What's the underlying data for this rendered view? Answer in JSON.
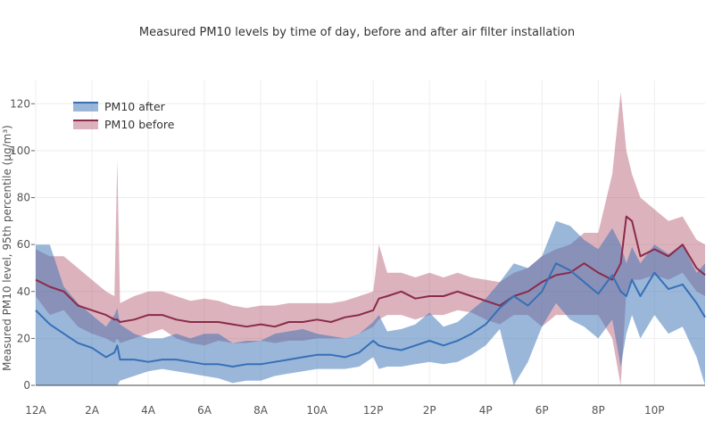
{
  "chart_data": {
    "type": "area",
    "title": "Measured PM10 levels by time of day, before and after air filter installation",
    "xlabel": "",
    "ylabel": "Measured PM10 level, 95th percentile (µg/m³)",
    "xlim_hours": [
      0,
      23.8
    ],
    "ylim": [
      0,
      130
    ],
    "grid": true,
    "legend_position": "top-left",
    "x_tick_hours": [
      0,
      2,
      4,
      6,
      8,
      10,
      12,
      14,
      16,
      18,
      20,
      22
    ],
    "x_tick_labels": [
      "12A",
      "2A",
      "4A",
      "6A",
      "8A",
      "10A",
      "12P",
      "2P",
      "4P",
      "6P",
      "8P",
      "10P"
    ],
    "y_ticks": [
      0,
      20,
      40,
      60,
      80,
      100,
      120
    ],
    "y_tick_labels": [
      "0",
      "20",
      "40",
      "60",
      "80",
      "100",
      "120"
    ],
    "x_hours": [
      0,
      0.5,
      1,
      1.5,
      2,
      2.5,
      2.8,
      2.9,
      3,
      3.5,
      4,
      4.5,
      5,
      5.5,
      6,
      6.5,
      7,
      7.5,
      8,
      8.5,
      9,
      9.5,
      10,
      10.5,
      11,
      11.5,
      12,
      12.2,
      12.5,
      13,
      13.5,
      14,
      14.5,
      15,
      15.5,
      16,
      16.5,
      17,
      17.5,
      18,
      18.5,
      19,
      19.5,
      20,
      20.5,
      20.8,
      21,
      21.2,
      21.5,
      22,
      22.5,
      23,
      23.5,
      23.8
    ],
    "series": [
      {
        "name": "PM10 after",
        "color": "#3670b5",
        "fill": "rgba(54,112,181,0.5)",
        "mean": [
          32,
          26,
          22,
          18,
          16,
          12,
          14,
          17,
          11,
          11,
          10,
          11,
          11,
          10,
          9,
          9,
          8,
          9,
          9,
          10,
          11,
          12,
          13,
          13,
          12,
          14,
          19,
          17,
          16,
          15,
          17,
          19,
          17,
          19,
          22,
          26,
          33,
          38,
          34,
          40,
          52,
          49,
          44,
          39,
          47,
          40,
          38,
          45,
          38,
          48,
          41,
          43,
          35,
          29
        ],
        "lower": [
          0,
          0,
          0,
          0,
          0,
          0,
          0,
          0,
          2,
          4,
          6,
          7,
          6,
          5,
          4,
          3,
          1,
          2,
          2,
          4,
          5,
          6,
          7,
          7,
          7,
          8,
          12,
          7,
          8,
          8,
          9,
          10,
          9,
          10,
          13,
          17,
          24,
          0,
          10,
          25,
          35,
          28,
          25,
          20,
          28,
          8,
          22,
          30,
          20,
          30,
          22,
          25,
          12,
          0
        ],
        "upper": [
          60,
          60,
          42,
          35,
          30,
          25,
          30,
          33,
          26,
          22,
          20,
          20,
          22,
          20,
          22,
          22,
          18,
          19,
          19,
          22,
          23,
          24,
          22,
          21,
          20,
          22,
          27,
          30,
          23,
          24,
          26,
          31,
          25,
          27,
          32,
          37,
          44,
          52,
          50,
          55,
          70,
          68,
          62,
          58,
          67,
          60,
          52,
          59,
          52,
          60,
          56,
          60,
          48,
          52
        ]
      },
      {
        "name": "PM10 before",
        "color": "#8b2a4a",
        "fill": "rgba(168,64,90,0.4)",
        "mean": [
          45,
          42,
          40,
          34,
          32,
          30,
          28,
          28,
          27,
          28,
          30,
          30,
          28,
          27,
          27,
          27,
          26,
          25,
          26,
          25,
          27,
          27,
          28,
          27,
          29,
          30,
          32,
          37,
          38,
          40,
          37,
          38,
          38,
          40,
          38,
          36,
          34,
          38,
          40,
          44,
          47,
          48,
          52,
          48,
          45,
          52,
          72,
          70,
          55,
          58,
          55,
          60,
          50,
          47
        ],
        "lower": [
          38,
          30,
          32,
          25,
          22,
          20,
          18,
          20,
          18,
          20,
          22,
          24,
          20,
          18,
          17,
          19,
          18,
          18,
          19,
          18,
          19,
          19,
          20,
          20,
          20,
          22,
          25,
          28,
          30,
          30,
          28,
          30,
          30,
          32,
          31,
          28,
          26,
          30,
          30,
          25,
          30,
          30,
          30,
          30,
          20,
          0,
          40,
          45,
          45,
          47,
          45,
          48,
          40,
          38
        ],
        "upper": [
          58,
          55,
          55,
          50,
          45,
          40,
          38,
          96,
          35,
          38,
          40,
          40,
          38,
          36,
          37,
          36,
          34,
          33,
          34,
          34,
          35,
          35,
          35,
          35,
          36,
          38,
          40,
          60,
          48,
          48,
          46,
          48,
          46,
          48,
          46,
          45,
          44,
          48,
          50,
          55,
          58,
          60,
          65,
          65,
          90,
          125,
          100,
          90,
          80,
          75,
          70,
          72,
          62,
          60
        ]
      }
    ]
  }
}
